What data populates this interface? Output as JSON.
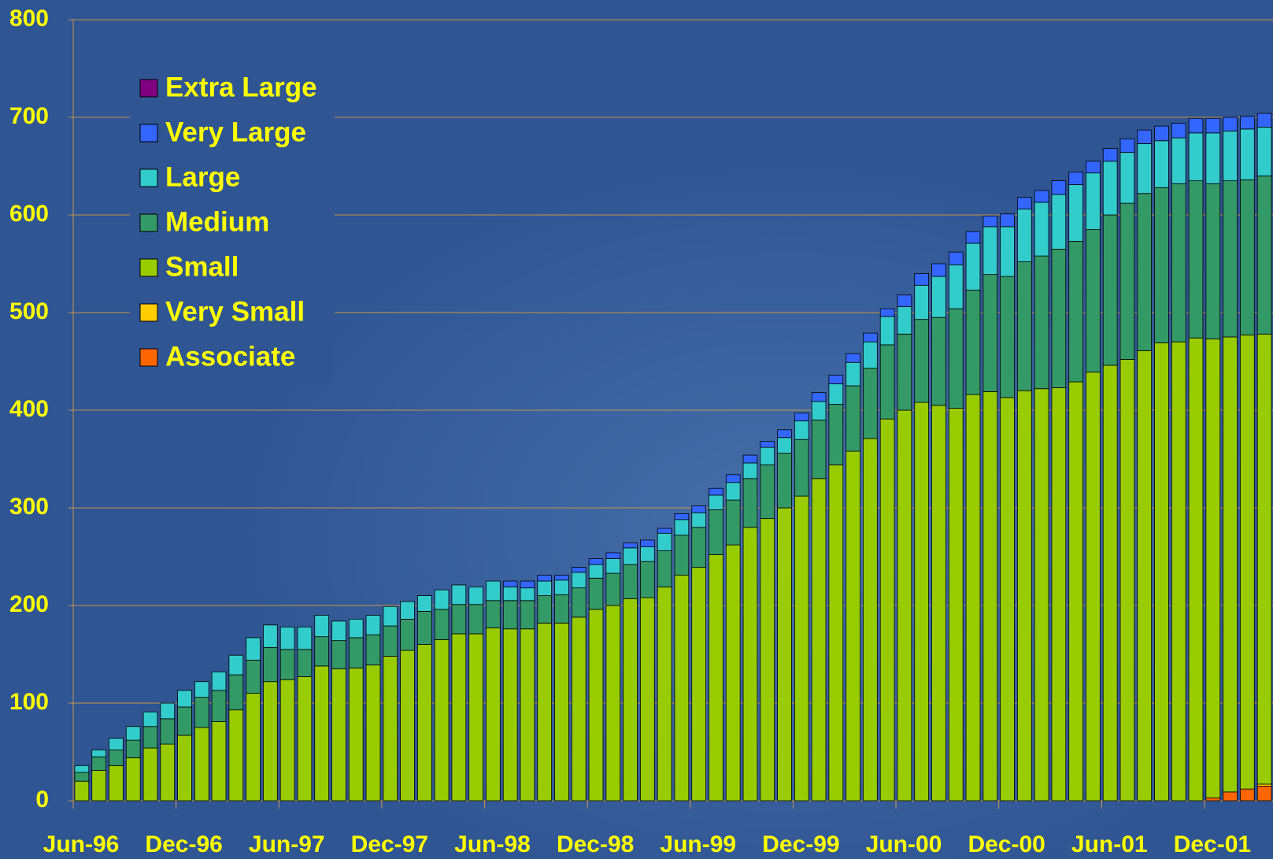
{
  "chart_data": {
    "type": "stacked_bar",
    "categories": [
      "Jun-96",
      null,
      null,
      null,
      null,
      null,
      "Dec-96",
      null,
      null,
      null,
      null,
      null,
      "Jun-97",
      null,
      null,
      null,
      null,
      null,
      "Dec-97",
      null,
      null,
      null,
      null,
      null,
      "Jun-98",
      null,
      null,
      null,
      null,
      null,
      "Dec-98",
      null,
      null,
      null,
      null,
      null,
      "Jun-99",
      null,
      null,
      null,
      null,
      null,
      "Dec-99",
      null,
      null,
      null,
      null,
      null,
      "Jun-00",
      null,
      null,
      null,
      null,
      null,
      "Dec-00",
      null,
      null,
      null,
      null,
      null,
      "Jun-01",
      null,
      null,
      null,
      null,
      null,
      "Dec-01",
      null,
      null,
      null
    ],
    "series": [
      {
        "name": "Extra Large",
        "color": "#800080",
        "values": [
          0,
          0,
          0,
          0,
          0,
          0,
          0,
          0,
          0,
          0,
          0,
          0,
          0,
          0,
          0,
          0,
          0,
          0,
          0,
          0,
          0,
          0,
          0,
          0,
          0,
          0,
          0,
          0,
          0,
          0,
          0,
          0,
          0,
          0,
          0,
          0,
          0,
          0,
          0,
          0,
          0,
          0,
          0,
          0,
          0,
          0,
          0,
          0,
          0,
          0,
          0,
          0,
          0,
          0,
          0,
          0,
          0,
          0,
          0,
          0,
          0,
          0,
          0,
          0,
          0,
          0,
          0,
          0,
          0,
          0
        ]
      },
      {
        "name": "Very Large",
        "color": "#3366ff",
        "values": [
          0,
          0,
          0,
          0,
          0,
          0,
          0,
          0,
          0,
          0,
          0,
          0,
          0,
          0,
          0,
          0,
          0,
          0,
          0,
          0,
          0,
          0,
          0,
          0,
          0,
          6,
          7,
          6,
          5,
          5,
          6,
          6,
          5,
          7,
          5,
          6,
          7,
          7,
          8,
          8,
          6,
          8,
          8,
          9,
          9,
          9,
          9,
          8,
          12,
          12,
          13,
          13,
          12,
          11,
          13,
          12,
          12,
          14,
          13,
          12,
          13,
          14,
          14,
          15,
          15,
          15,
          15,
          14,
          13,
          14
        ]
      },
      {
        "name": "Large",
        "color": "#33cccc",
        "values": [
          7,
          7,
          12,
          14,
          15,
          16,
          17,
          16,
          19,
          20,
          23,
          23,
          23,
          23,
          22,
          20,
          19,
          20,
          20,
          18,
          16,
          20,
          20,
          18,
          20,
          14,
          13,
          15,
          15,
          16,
          14,
          15,
          17,
          15,
          18,
          16,
          15,
          15,
          18,
          16,
          18,
          16,
          19,
          19,
          21,
          24,
          27,
          29,
          28,
          35,
          42,
          45,
          48,
          49,
          51,
          54,
          55,
          56,
          58,
          58,
          55,
          52,
          51,
          48,
          47,
          49,
          52,
          51,
          52,
          50
        ]
      },
      {
        "name": "Medium",
        "color": "#339966",
        "values": [
          9,
          14,
          16,
          18,
          22,
          26,
          29,
          31,
          32,
          36,
          34,
          35,
          31,
          28,
          30,
          29,
          31,
          31,
          31,
          32,
          34,
          31,
          30,
          30,
          28,
          29,
          29,
          28,
          29,
          30,
          32,
          33,
          35,
          37,
          37,
          41,
          41,
          46,
          46,
          50,
          55,
          56,
          58,
          60,
          62,
          67,
          72,
          76,
          78,
          85,
          90,
          102,
          107,
          120,
          124,
          132,
          136,
          142,
          144,
          146,
          154,
          160,
          161,
          159,
          162,
          161,
          159,
          160,
          159,
          162
        ]
      },
      {
        "name": "Small",
        "color": "#99cc00",
        "values": [
          20,
          31,
          36,
          44,
          54,
          58,
          67,
          75,
          81,
          93,
          110,
          122,
          124,
          127,
          138,
          135,
          136,
          139,
          148,
          154,
          160,
          165,
          171,
          171,
          177,
          176,
          176,
          182,
          182,
          188,
          196,
          200,
          207,
          208,
          219,
          231,
          239,
          252,
          262,
          280,
          289,
          300,
          312,
          330,
          344,
          358,
          371,
          391,
          400,
          408,
          405,
          402,
          416,
          419,
          413,
          420,
          422,
          423,
          429,
          439,
          446,
          452,
          461,
          469,
          470,
          474,
          470,
          466,
          465,
          461
        ]
      },
      {
        "name": "Very Small",
        "color": "#ffcc00",
        "values": [
          0,
          0,
          0,
          0,
          0,
          0,
          0,
          0,
          0,
          0,
          0,
          0,
          0,
          0,
          0,
          0,
          0,
          0,
          0,
          0,
          0,
          0,
          0,
          0,
          0,
          0,
          0,
          0,
          0,
          0,
          0,
          0,
          0,
          0,
          0,
          0,
          0,
          0,
          0,
          0,
          0,
          0,
          0,
          0,
          0,
          0,
          0,
          0,
          0,
          0,
          0,
          0,
          0,
          0,
          0,
          0,
          0,
          0,
          0,
          0,
          0,
          0,
          0,
          0,
          0,
          0,
          0,
          0,
          0,
          2
        ]
      },
      {
        "name": "Associate",
        "color": "#ff6600",
        "values": [
          0,
          0,
          0,
          0,
          0,
          0,
          0,
          0,
          0,
          0,
          0,
          0,
          0,
          0,
          0,
          0,
          0,
          0,
          0,
          0,
          0,
          0,
          0,
          0,
          0,
          0,
          0,
          0,
          0,
          0,
          0,
          0,
          0,
          0,
          0,
          0,
          0,
          0,
          0,
          0,
          0,
          0,
          0,
          0,
          0,
          0,
          0,
          0,
          0,
          0,
          0,
          0,
          0,
          0,
          0,
          0,
          0,
          0,
          0,
          0,
          0,
          0,
          0,
          0,
          0,
          0,
          3,
          9,
          12,
          15
        ]
      }
    ],
    "ylim": [
      0,
      800
    ],
    "yticks": [
      0,
      100,
      200,
      300,
      400,
      500,
      600,
      700,
      800
    ],
    "grid": true,
    "legend": "upper-left"
  }
}
